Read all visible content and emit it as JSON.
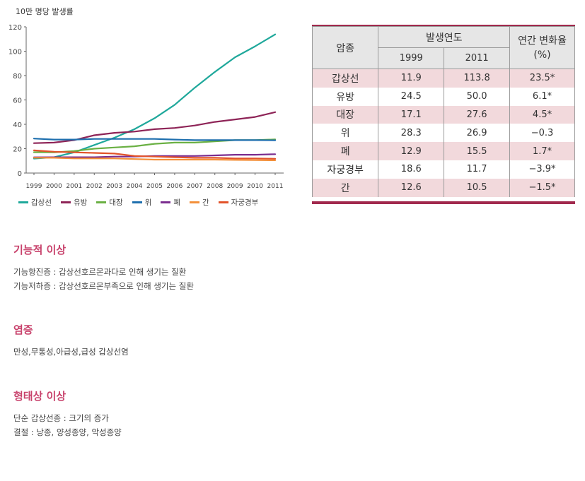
{
  "chart_data": {
    "type": "line",
    "ylabel": "10만 명당 발생률",
    "ylim": [
      0,
      120
    ],
    "yticks": [
      0,
      20,
      40,
      60,
      80,
      100,
      120
    ],
    "x": [
      "1999",
      "2000",
      "2001",
      "2002",
      "2003",
      "2004",
      "2005",
      "2006",
      "2007",
      "2008",
      "2009",
      "2010",
      "2011"
    ],
    "grid": false,
    "legend_position": "bottom",
    "series": [
      {
        "name": "갑상선",
        "color": "#1fa89b",
        "values": [
          11.9,
          13,
          17,
          23,
          29,
          36,
          45,
          56,
          70,
          83,
          95,
          104,
          113.8
        ]
      },
      {
        "name": "유방",
        "color": "#8e2457",
        "values": [
          24.5,
          25,
          27,
          31,
          33,
          34,
          36,
          37,
          39,
          42,
          44,
          46,
          50.0
        ]
      },
      {
        "name": "대장",
        "color": "#6ab043",
        "values": [
          17.1,
          17,
          18,
          20,
          21,
          22,
          24,
          25,
          25,
          26,
          27,
          27,
          27.6
        ]
      },
      {
        "name": "위",
        "color": "#1e6fae",
        "values": [
          28.3,
          27.5,
          27.5,
          28,
          28,
          28,
          28,
          27.5,
          27,
          27,
          27,
          27,
          26.9
        ]
      },
      {
        "name": "폐",
        "color": "#7b2d8f",
        "values": [
          12.9,
          13,
          13,
          13,
          13.5,
          13.5,
          14,
          14,
          14,
          14.5,
          15,
          15,
          15.5
        ]
      },
      {
        "name": "간",
        "color": "#f3903a",
        "values": [
          12.6,
          12.5,
          12,
          12,
          12,
          11.5,
          11,
          11,
          11,
          11,
          10.8,
          10.6,
          10.5
        ]
      },
      {
        "name": "자궁경부",
        "color": "#e2532a",
        "values": [
          18.6,
          17.5,
          17,
          16.5,
          16,
          14,
          13.5,
          13,
          12.5,
          12.5,
          12,
          12,
          11.7
        ]
      }
    ]
  },
  "table": {
    "header": {
      "cancer": "암종",
      "year_group": "발생연도",
      "y1999": "1999",
      "y2011": "2011",
      "change": "연간 변화율",
      "change_unit": "(%)"
    },
    "rows": [
      {
        "name": "갑상선",
        "v1999": "11.9",
        "v2011": "113.8",
        "change": "23.5*"
      },
      {
        "name": "유방",
        "v1999": "24.5",
        "v2011": "50.0",
        "change": "6.1*"
      },
      {
        "name": "대장",
        "v1999": "17.1",
        "v2011": "27.6",
        "change": "4.5*"
      },
      {
        "name": "위",
        "v1999": "28.3",
        "v2011": "26.9",
        "change": "−0.3"
      },
      {
        "name": "폐",
        "v1999": "12.9",
        "v2011": "15.5",
        "change": "1.7*"
      },
      {
        "name": "자궁경부",
        "v1999": "18.6",
        "v2011": "11.7",
        "change": "−3.9*"
      },
      {
        "name": "간",
        "v1999": "12.6",
        "v2011": "10.5",
        "change": "−1.5*"
      }
    ]
  },
  "sections": [
    {
      "title": "기능적 이상",
      "lines": [
        "기능항진증 : 갑상선호르몬과다로 인해 생기는 질환",
        "기능저하증 : 갑상선호르몬부족으로 인해 생기는 질환"
      ]
    },
    {
      "title": "염증",
      "lines": [
        "만성,무통성,아급성,급성 갑상선염"
      ]
    },
    {
      "title": "형태상 이상",
      "lines": [
        "단순 갑상선종 : 크기의 증가",
        "결절 : 낭종, 양성종양, 악성종양"
      ]
    }
  ],
  "colors": {
    "accent": "#a1294d",
    "title": "#c8426c",
    "row_pink": "#f2d9dc",
    "header_gray": "#e6e6e6"
  }
}
